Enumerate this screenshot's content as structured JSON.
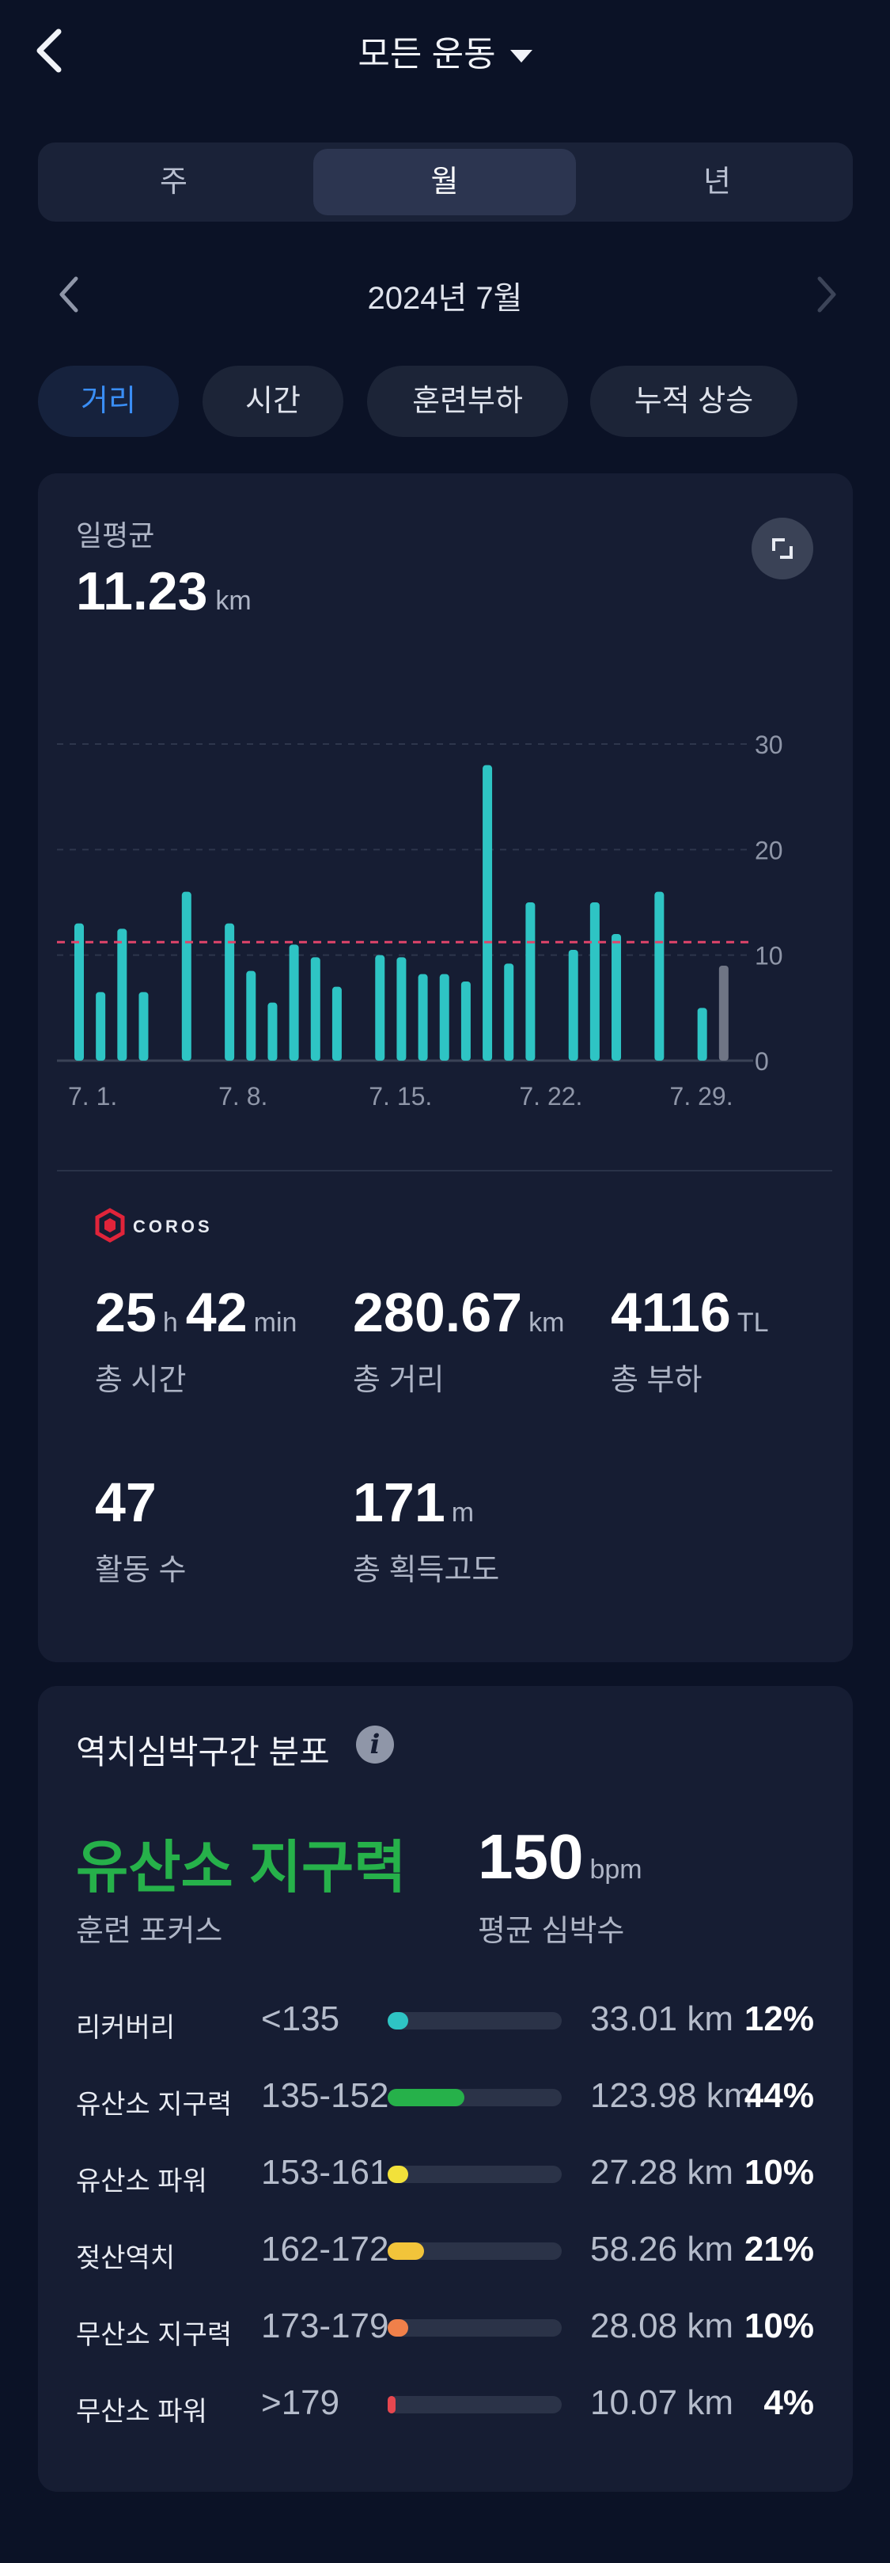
{
  "header": {
    "title": "모든 운동",
    "back_icon": "chevron-left-icon",
    "dropdown_icon": "caret-down-icon"
  },
  "segment": {
    "items": [
      "주",
      "월",
      "년"
    ],
    "active": "월"
  },
  "month_nav": {
    "label": "2024년 7월"
  },
  "chips": [
    "거리",
    "시간",
    "훈련부하",
    "누적 상승"
  ],
  "daily_avg": {
    "label": "일평균",
    "value": "11.23",
    "unit": "km"
  },
  "chart_data": {
    "type": "bar",
    "x": [
      1,
      2,
      3,
      4,
      6,
      8,
      9,
      10,
      11,
      12,
      13,
      15,
      16,
      17,
      18,
      19,
      20,
      21,
      22,
      24,
      25,
      26,
      28,
      30,
      31
    ],
    "values": [
      13,
      6.5,
      12.5,
      6.5,
      16,
      13,
      8.5,
      5.5,
      11,
      9.8,
      7,
      10,
      9.8,
      8.2,
      8.2,
      7.5,
      28,
      9.2,
      15,
      10.5,
      15,
      12,
      16,
      5,
      9
    ],
    "x_tick_labels": [
      "7. 1.",
      "7. 8.",
      "7. 15.",
      "7. 22.",
      "7. 29."
    ],
    "x_tick_days": [
      1,
      8,
      15,
      22,
      29
    ],
    "y_ticks": [
      0,
      10,
      20,
      30
    ],
    "ylim": [
      0,
      30
    ],
    "average": 11.23,
    "bar_color": "#2ec4c4",
    "last_bar_color": "#6f7585",
    "avg_line_color": "#e0446a",
    "grid": true
  },
  "brand": {
    "logo_text": "COROS"
  },
  "stats": [
    {
      "parts": [
        {
          "v": "25",
          "u": "h"
        },
        {
          "v": "42",
          "u": "min"
        }
      ],
      "label": "총 시간"
    },
    {
      "parts": [
        {
          "v": "280.67",
          "u": "km"
        }
      ],
      "label": "총 거리"
    },
    {
      "parts": [
        {
          "v": "4116",
          "u": "TL"
        }
      ],
      "label": "총 부하"
    },
    {
      "parts": [
        {
          "v": "47",
          "u": ""
        }
      ],
      "label": "활동 수"
    },
    {
      "parts": [
        {
          "v": "171",
          "u": "m"
        }
      ],
      "label": "총 획득고도"
    }
  ],
  "hr": {
    "title": "역치심박구간 분포",
    "focus_value": "유산소 지구력",
    "focus_label": "훈련 포커스",
    "avg_value": "150",
    "avg_unit": "bpm",
    "avg_label": "평균 심박수",
    "zones": [
      {
        "name": "리커버리",
        "range": "<135",
        "dist": "33.01 km",
        "pct": "12%",
        "frac": 0.12,
        "color": "#2ec4c4"
      },
      {
        "name": "유산소 지구력",
        "range": "135-152",
        "dist": "123.98 km",
        "pct": "44%",
        "frac": 0.44,
        "color": "#26b14a"
      },
      {
        "name": "유산소 파워",
        "range": "153-161",
        "dist": "27.28 km",
        "pct": "10%",
        "frac": 0.1,
        "color": "#f2e13a"
      },
      {
        "name": "젖산역치",
        "range": "162-172",
        "dist": "58.26 km",
        "pct": "21%",
        "frac": 0.21,
        "color": "#f2c43a"
      },
      {
        "name": "무산소 지구력",
        "range": "173-179",
        "dist": "28.08 km",
        "pct": "10%",
        "frac": 0.1,
        "color": "#f0804a"
      },
      {
        "name": "무산소 파워",
        "range": ">179",
        "dist": "10.07 km",
        "pct": "4%",
        "frac": 0.04,
        "color": "#e6474f"
      }
    ]
  }
}
